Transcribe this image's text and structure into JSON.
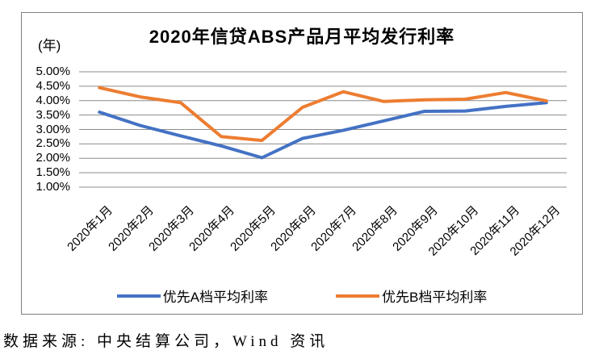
{
  "chart_data": {
    "type": "line",
    "title": "2020年信贷ABS产品月平均发行利率",
    "unit_label": "(年)",
    "categories": [
      "2020年1月",
      "2020年2月",
      "2020年3月",
      "2020年4月",
      "2020年5月",
      "2020年6月",
      "2020年7月",
      "2020年8月",
      "2020年9月",
      "2020年10月",
      "2020年11月",
      "2020年12月"
    ],
    "series": [
      {
        "name": "优先A档平均利率",
        "color": "#4472C4",
        "values": [
          3.6,
          3.14,
          2.78,
          2.43,
          2.02,
          2.69,
          2.97,
          3.3,
          3.63,
          3.64,
          3.8,
          3.93
        ]
      },
      {
        "name": "优先B档平均利率",
        "color": "#ED7D31",
        "values": [
          4.45,
          4.13,
          3.93,
          2.75,
          2.62,
          3.77,
          4.31,
          3.97,
          4.03,
          4.05,
          4.28,
          3.99
        ]
      }
    ],
    "y_axis": {
      "min": 1.0,
      "max": 5.0,
      "step": 0.5,
      "tick_labels": [
        "5.00%",
        "4.50%",
        "4.00%",
        "3.50%",
        "3.00%",
        "2.50%",
        "2.00%",
        "1.50%",
        "1.00%"
      ]
    },
    "grid": true,
    "legend_position": "bottom",
    "gridline_color": "#8C8C8C",
    "frame_color": "#808080"
  },
  "caption": "数据来源: 中央结算公司，Wind 资讯"
}
